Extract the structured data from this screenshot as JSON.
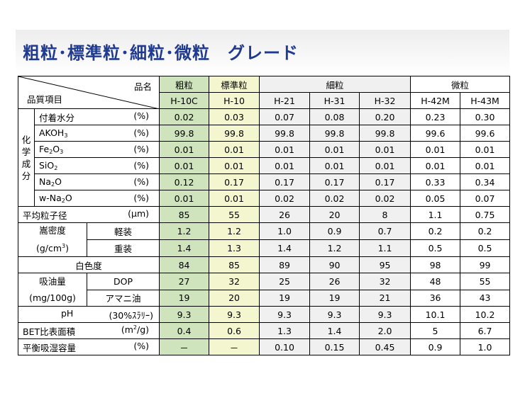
{
  "page": {
    "title": "粗粒･標準粒･細粒･微粒　グレード"
  },
  "header": {
    "item_label": "品質項目",
    "name_label": "品名",
    "groups": {
      "coarse": "粗粒",
      "standard": "標準粒",
      "fine": "細粒",
      "micro": "微粒"
    },
    "grades": [
      "H-10C",
      "H-10",
      "H-21",
      "H-31",
      "H-32",
      "H-42M",
      "H-43M"
    ]
  },
  "chem": {
    "group_chars": [
      "化",
      "学",
      "成",
      "分"
    ],
    "rows": [
      {
        "name": "付着水分",
        "unit": "(%)",
        "values": [
          "0.02",
          "0.03",
          "0.07",
          "0.08",
          "0.20",
          "0.23",
          "0.30"
        ]
      },
      {
        "name": "AKOH3",
        "unit": "(%)",
        "values": [
          "99.8",
          "99.8",
          "99.8",
          "99.8",
          "99.8",
          "99.6",
          "99.6"
        ]
      },
      {
        "name": "Fe2O3",
        "unit": "(%)",
        "values": [
          "0.01",
          "0.01",
          "0.01",
          "0.01",
          "0.01",
          "0.01",
          "0.01"
        ]
      },
      {
        "name": "SiO2",
        "unit": "(%)",
        "values": [
          "0.01",
          "0.01",
          "0.01",
          "0.01",
          "0.01",
          "0.01",
          "0.01"
        ]
      },
      {
        "name": "Na2O",
        "unit": "(%)",
        "values": [
          "0.12",
          "0.17",
          "0.17",
          "0.17",
          "0.17",
          "0.33",
          "0.34"
        ]
      },
      {
        "name": "w-Na2O",
        "unit": "(%)",
        "values": [
          "0.01",
          "0.01",
          "0.02",
          "0.02",
          "0.02",
          "0.05",
          "0.07"
        ]
      }
    ]
  },
  "particle": {
    "name": "平均粒子径",
    "unit": "(μm)",
    "values": [
      "85",
      "55",
      "26",
      "20",
      "8",
      "1.1",
      "0.75"
    ]
  },
  "density": {
    "name": "嵩密度",
    "unit": "(g/cm3)",
    "rows": [
      {
        "sub": "軽装",
        "values": [
          "1.2",
          "1.2",
          "1.0",
          "0.9",
          "0.7",
          "0.2",
          "0.2"
        ]
      },
      {
        "sub": "重装",
        "values": [
          "1.4",
          "1.3",
          "1.4",
          "1.2",
          "1.1",
          "0.5",
          "0.5"
        ]
      }
    ]
  },
  "whiteness": {
    "name": "白色度",
    "values": [
      "84",
      "85",
      "89",
      "90",
      "95",
      "98",
      "99"
    ]
  },
  "oil": {
    "name": "吸油量",
    "unit": "(mg/100g)",
    "rows": [
      {
        "sub": "DOP",
        "values": [
          "27",
          "32",
          "25",
          "26",
          "32",
          "48",
          "55"
        ]
      },
      {
        "sub": "アマニ油",
        "values": [
          "19",
          "20",
          "19",
          "19",
          "21",
          "36",
          "43"
        ]
      }
    ]
  },
  "ph": {
    "name": "pH",
    "unit": "(30%ｽﾗﾘｰ)",
    "values": [
      "9.3",
      "9.3",
      "9.3",
      "9.3",
      "9.3",
      "10.1",
      "10.2"
    ]
  },
  "bet": {
    "name": "BET比表面積",
    "unit": "(m2/g)",
    "values": [
      "0.4",
      "0.6",
      "1.3",
      "1.4",
      "2.0",
      "5",
      "6.7"
    ]
  },
  "moisture": {
    "name": "平衡吸湿容量",
    "unit": "(%)",
    "values": [
      "－",
      "－",
      "0.10",
      "0.15",
      "0.45",
      "0.9",
      "1.0"
    ]
  }
}
